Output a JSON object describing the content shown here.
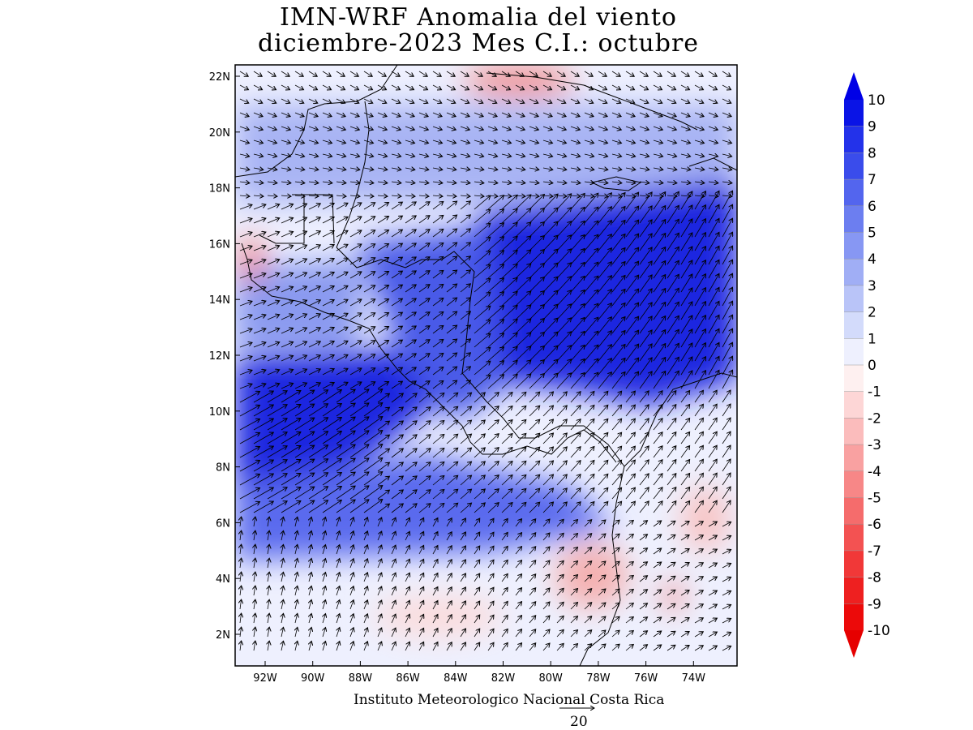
{
  "title": {
    "line1": "IMN-WRF Anomalia del viento",
    "line2": "diciembre-2023 Mes C.I.: octubre"
  },
  "credit": "Instituto Meteorologico Nacional Costa Rica",
  "reference_vector": {
    "value": "20"
  },
  "axes": {
    "lon_ticks": [
      "92W",
      "90W",
      "88W",
      "86W",
      "84W",
      "82W",
      "80W",
      "78W",
      "76W",
      "74W"
    ],
    "lat_ticks": [
      "22N",
      "20N",
      "18N",
      "16N",
      "14N",
      "12N",
      "10N",
      "8N",
      "6N",
      "4N",
      "2N"
    ]
  },
  "colorbar": {
    "labels": [
      "10",
      "9",
      "8",
      "7",
      "6",
      "5",
      "4",
      "3",
      "2",
      "1",
      "0",
      "-1",
      "-2",
      "-3",
      "-4",
      "-5",
      "-6",
      "-7",
      "-8",
      "-9",
      "-10"
    ],
    "colors": [
      "#0a14e6",
      "#2332ea",
      "#3a4ceb",
      "#5365ee",
      "#6c7ef0",
      "#8797f3",
      "#a0aef5",
      "#b9c4f8",
      "#d3dbfb",
      "#eef0fe",
      "#fef0f0",
      "#fdd6d6",
      "#fbbcbc",
      "#f9a1a1",
      "#f78787",
      "#f56c6c",
      "#f35252",
      "#f13838",
      "#ee2020",
      "#ec0a0a"
    ],
    "top_arrow_color": "#0000e6",
    "bottom_arrow_color": "#e60000"
  },
  "map_data": {
    "lon_range": [
      -93.4,
      -72.4
    ],
    "lat_range": [
      1.0,
      22.4
    ],
    "blue_anomaly_color": "#3040e0",
    "red_anomaly_color": "#f07070"
  }
}
